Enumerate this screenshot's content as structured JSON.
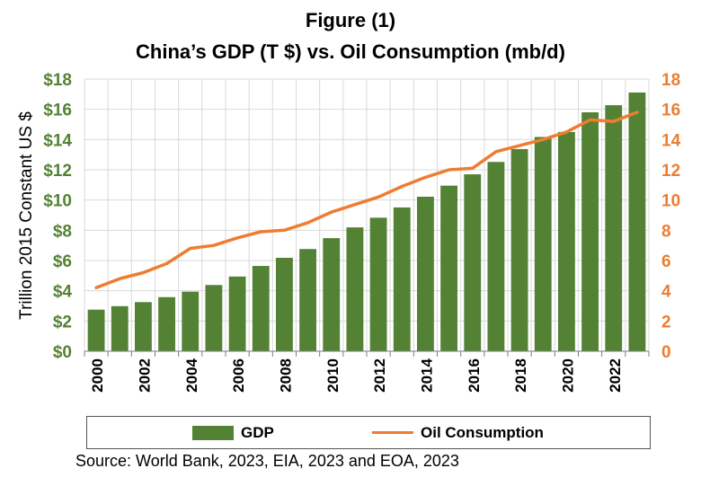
{
  "title_line1": "Figure (1)",
  "title_line2": "China’s GDP (T $) vs. Oil Consumption (mb/d)",
  "source": "Source: World Bank, 2023, EIA, 2023 and EOA, 2023",
  "colors": {
    "gdp": "#548235",
    "oil": "#ED7D31",
    "left_axis_text": "#548235",
    "right_axis_text": "#ED7D31",
    "grid": "#d9d9d9"
  },
  "chart_data": {
    "type": "bar",
    "title": "Figure (1) China’s GDP (T $) vs. Oil Consumption (mb/d)",
    "x": [
      2000,
      2001,
      2002,
      2003,
      2004,
      2005,
      2006,
      2007,
      2008,
      2009,
      2010,
      2011,
      2012,
      2013,
      2014,
      2015,
      2016,
      2017,
      2018,
      2019,
      2020,
      2021,
      2022,
      2023
    ],
    "x_tick_labels": [
      "2000",
      "2002",
      "2004",
      "2006",
      "2008",
      "2010",
      "2012",
      "2014",
      "2016",
      "2018",
      "2020",
      "2022"
    ],
    "ylabel": "Trillion 2015 Constant US $",
    "y_left_ticks": [
      "$0",
      "$2",
      "$4",
      "$6",
      "$8",
      "$10",
      "$12",
      "$14",
      "$16",
      "$18"
    ],
    "y_right_ticks": [
      "0",
      "2",
      "4",
      "6",
      "8",
      "10",
      "12",
      "14",
      "16",
      "18"
    ],
    "ylim_left": [
      0,
      18
    ],
    "ylim_right": [
      0,
      18
    ],
    "grid": true,
    "legend_position": "bottom",
    "series": [
      {
        "name": "GDP",
        "type": "bar",
        "axis": "left",
        "values": [
          2.75,
          2.98,
          3.25,
          3.58,
          3.94,
          4.38,
          4.94,
          5.64,
          6.18,
          6.76,
          7.48,
          8.19,
          8.83,
          9.51,
          10.22,
          10.95,
          11.7,
          12.52,
          13.37,
          14.17,
          14.5,
          15.8,
          16.27,
          17.11
        ]
      },
      {
        "name": "Oil Consumption",
        "type": "line",
        "axis": "right",
        "values": [
          4.2,
          4.8,
          5.2,
          5.8,
          6.8,
          7.0,
          7.5,
          7.9,
          8.0,
          8.5,
          9.2,
          9.7,
          10.2,
          10.9,
          11.5,
          12.0,
          12.1,
          13.2,
          13.6,
          14.0,
          14.5,
          15.3,
          15.2,
          15.8
        ]
      }
    ]
  }
}
